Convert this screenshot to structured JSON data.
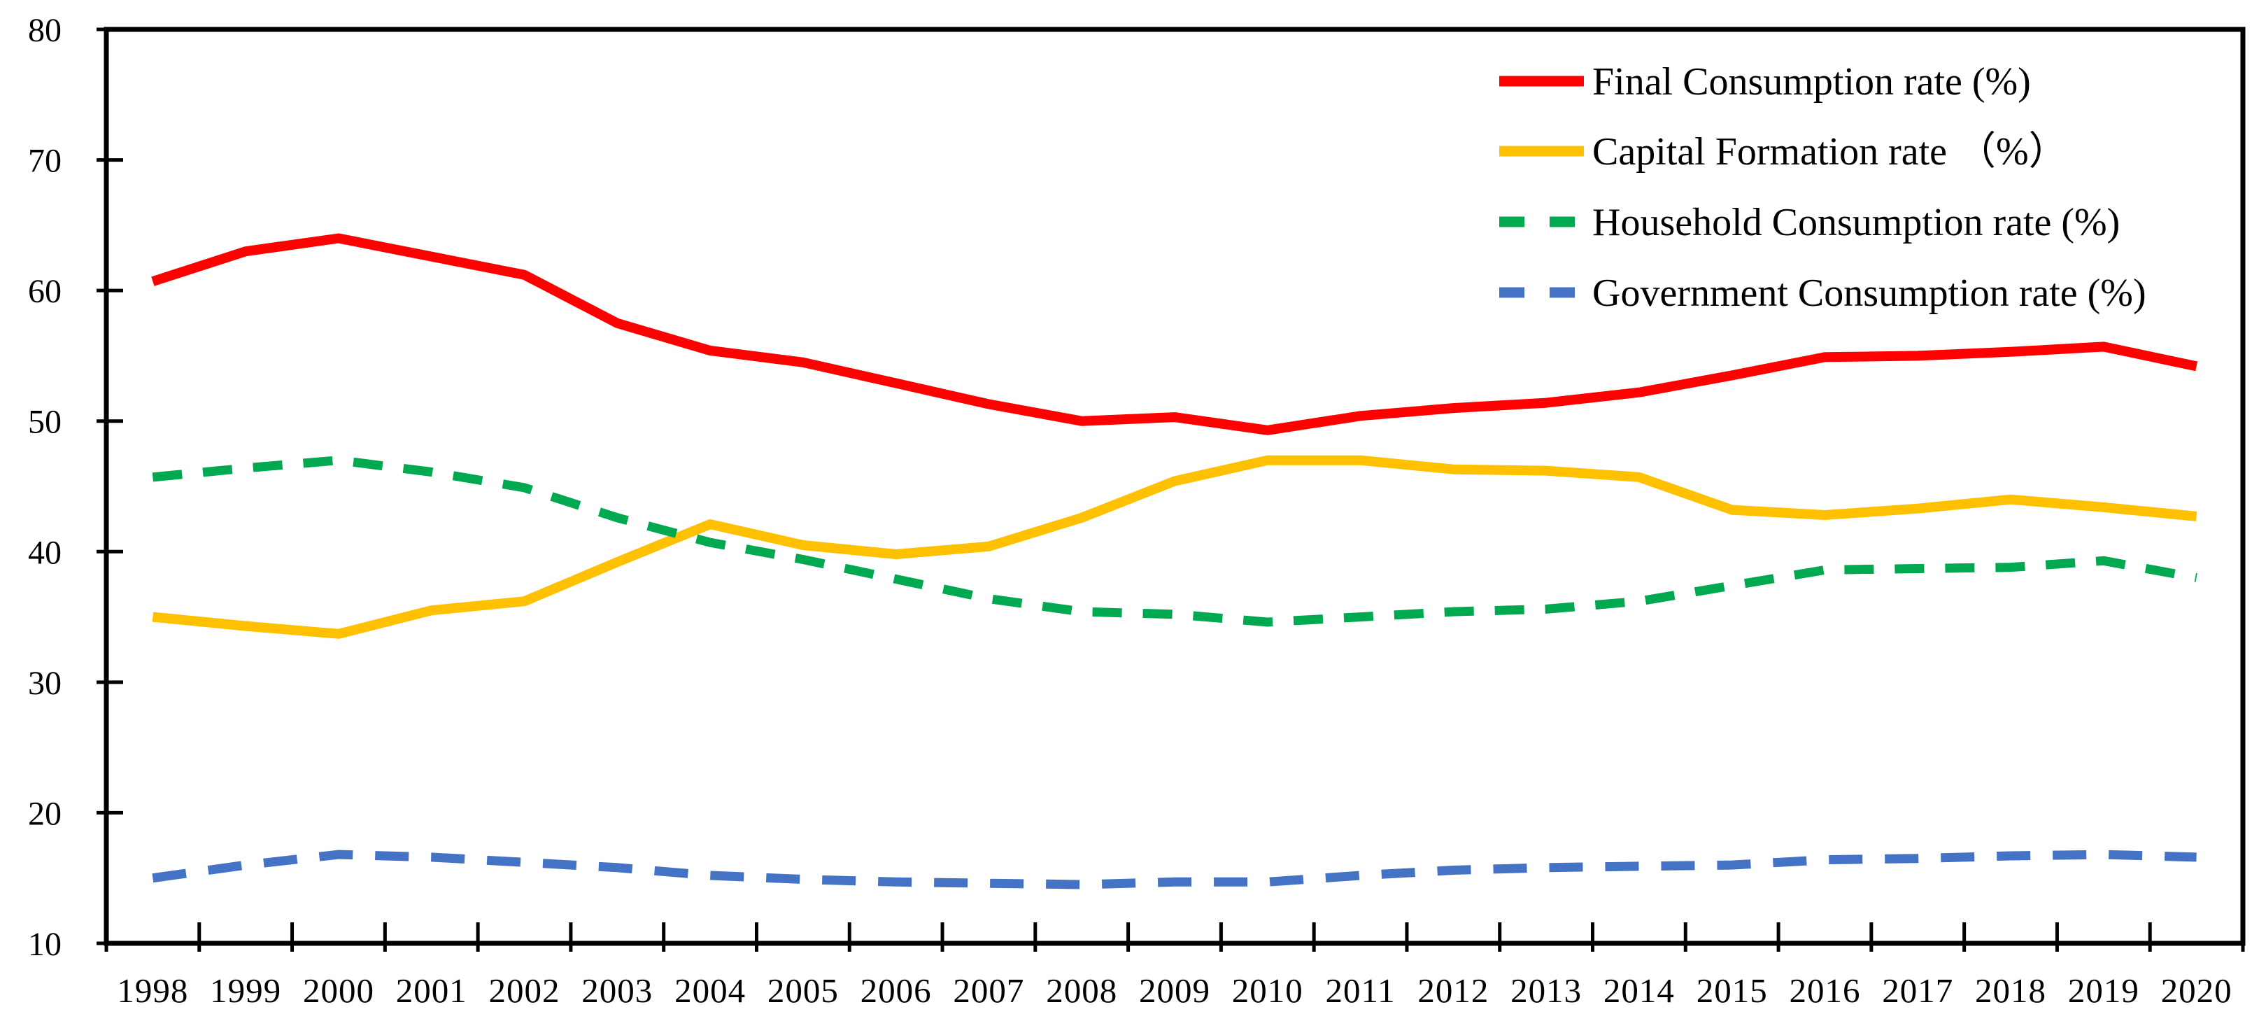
{
  "chart_data": {
    "type": "line",
    "title": "",
    "xlabel": "",
    "ylabel": "",
    "x": [
      1998,
      1999,
      2000,
      2001,
      2002,
      2003,
      2004,
      2005,
      2006,
      2007,
      2008,
      2009,
      2010,
      2011,
      2012,
      2013,
      2014,
      2015,
      2016,
      2017,
      2018,
      2019,
      2020
    ],
    "x_tick_labels": [
      "1998",
      "1999",
      "2000",
      "2001",
      "2002",
      "2003",
      "2004",
      "2005",
      "2006",
      "2007",
      "2008",
      "2009",
      "2010",
      "2011",
      "2012",
      "2013",
      "2014",
      "2015",
      "2016",
      "2017",
      "2018",
      "2019",
      "2020"
    ],
    "y_tick_labels": [
      "10",
      "20",
      "30",
      "40",
      "50",
      "60",
      "70",
      "80"
    ],
    "ylim": [
      10,
      80
    ],
    "y_step": 10,
    "grid": false,
    "legend_position": "top-right-inside",
    "axis_color": "#000000",
    "series": [
      {
        "name": "Final Consumption  rate (%)",
        "color": "#ff0000",
        "style": "solid",
        "values": [
          60.7,
          63.0,
          64.0,
          62.6,
          61.2,
          57.5,
          55.4,
          54.5,
          52.9,
          51.3,
          50.0,
          50.3,
          49.3,
          50.4,
          51.0,
          51.4,
          52.2,
          53.5,
          54.9,
          55.0,
          55.3,
          55.7,
          54.2
        ]
      },
      {
        "name": "Capital Formation rate  （%）",
        "color": "#ffc000",
        "style": "solid",
        "values": [
          35.0,
          34.3,
          33.7,
          35.5,
          36.2,
          39.2,
          42.1,
          40.5,
          39.8,
          40.4,
          42.6,
          45.4,
          47.0,
          47.0,
          46.3,
          46.2,
          45.7,
          43.2,
          42.8,
          43.3,
          44.0,
          43.4,
          42.7
        ]
      },
      {
        "name": "Household Consumption  rate (%)",
        "color": "#00a850",
        "style": "dashed",
        "values": [
          45.7,
          46.4,
          47.0,
          46.1,
          44.9,
          42.6,
          40.7,
          39.4,
          37.9,
          36.4,
          35.4,
          35.2,
          34.6,
          35.0,
          35.4,
          35.6,
          36.2,
          37.4,
          38.6,
          38.7,
          38.8,
          39.3,
          38.0
        ]
      },
      {
        "name": "Government Consumption rate (%)",
        "color": "#4472c4",
        "style": "dashed",
        "values": [
          15.0,
          16.0,
          16.8,
          16.6,
          16.2,
          15.8,
          15.2,
          14.9,
          14.7,
          14.6,
          14.5,
          14.7,
          14.7,
          15.2,
          15.6,
          15.8,
          15.9,
          16.0,
          16.4,
          16.5,
          16.7,
          16.8,
          16.6
        ]
      }
    ]
  }
}
